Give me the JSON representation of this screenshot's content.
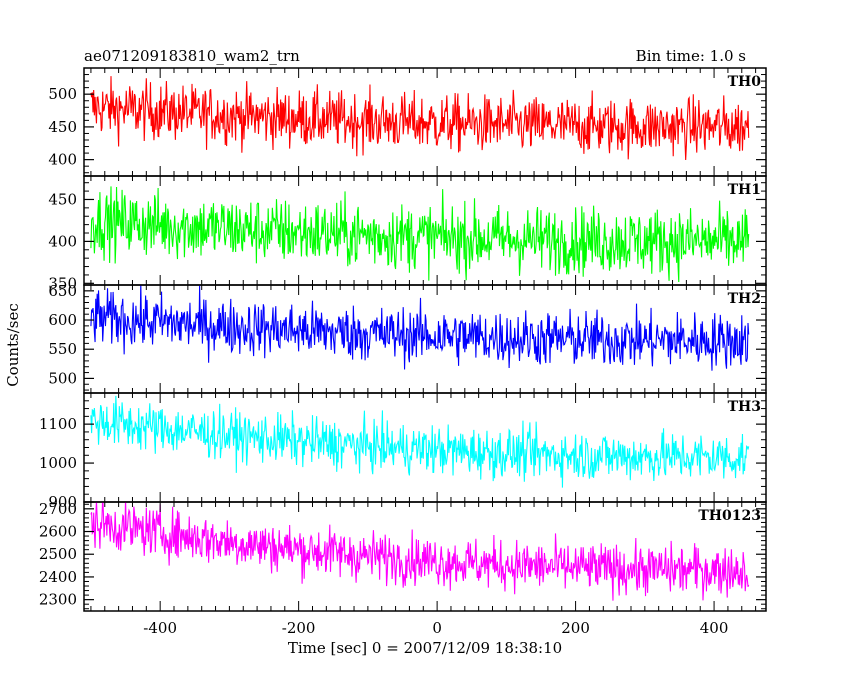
{
  "chart_data": {
    "type": "line",
    "title": "ae071209183810_wam2_trn",
    "bin_time": "Bin time: 1.0 s",
    "xlabel": "Time [sec] 0 = 2007/12/09 18:38:10",
    "ylabel": "Counts/sec",
    "xlim": [
      -510,
      475
    ],
    "xticks": [
      -400,
      -200,
      0,
      200,
      400
    ],
    "grid": false,
    "panels": [
      {
        "name": "TH0",
        "color": "#ff0000",
        "ylim": [
          375,
          540
        ],
        "yticks": [
          400,
          450,
          500
        ],
        "t_start": -500,
        "t_end": 450,
        "level_start": 480,
        "level_end": 450,
        "noise": 22
      },
      {
        "name": "TH1",
        "color": "#00ff00",
        "ylim": [
          348,
          478
        ],
        "yticks": [
          350,
          400,
          450
        ],
        "t_start": -500,
        "t_end": 450,
        "level_start": 425,
        "level_end": 400,
        "noise": 20
      },
      {
        "name": "TH2",
        "color": "#0000ff",
        "ylim": [
          475,
          660
        ],
        "yticks": [
          500,
          550,
          600,
          650
        ],
        "t_start": -500,
        "t_end": 450,
        "level_start": 605,
        "level_end": 565,
        "noise": 24
      },
      {
        "name": "TH3",
        "color": "#00ffff",
        "ylim": [
          900,
          1180
        ],
        "yticks": [
          900,
          1000,
          1100
        ],
        "t_start": -500,
        "t_end": 450,
        "level_start": 1110,
        "level_end": 1015,
        "noise": 32
      },
      {
        "name": "TH0123",
        "color": "#ff00ff",
        "ylim": [
          2250,
          2730
        ],
        "yticks": [
          2300,
          2400,
          2500,
          2600,
          2700
        ],
        "t_start": -500,
        "t_end": 450,
        "level_start": 2640,
        "level_end": 2430,
        "noise": 55
      }
    ]
  }
}
